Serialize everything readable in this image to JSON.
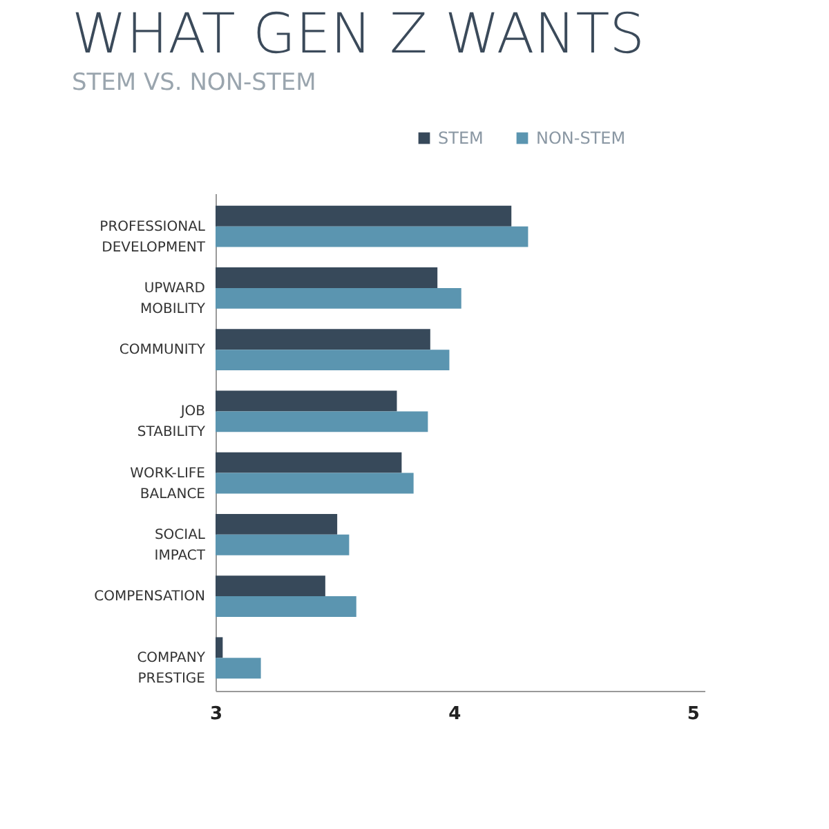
{
  "chart_data": {
    "type": "bar",
    "orientation": "horizontal",
    "title": "WHAT GEN Z WANTS",
    "subtitle": "STEM VS. NON-STEM",
    "categories": [
      "PROFESSIONAL DEVELOPMENT",
      "UPWARD MOBILITY",
      "COMMUNITY",
      "JOB STABILITY",
      "WORK-LIFE BALANCE",
      "SOCIAL IMPACT",
      "COMPENSATION",
      "COMPANY PRESTIGE"
    ],
    "series": [
      {
        "name": "STEM",
        "color": "#37495a",
        "values": [
          4.24,
          3.93,
          3.9,
          3.76,
          3.78,
          3.51,
          3.46,
          3.03
        ]
      },
      {
        "name": "NON-STEM",
        "color": "#5b95b0",
        "values": [
          4.31,
          4.03,
          3.98,
          3.89,
          3.83,
          3.56,
          3.59,
          3.19
        ]
      }
    ],
    "xlim": [
      3,
      5.05
    ],
    "xticks": [
      3,
      4,
      5
    ],
    "grid": false,
    "legend": "top right"
  }
}
